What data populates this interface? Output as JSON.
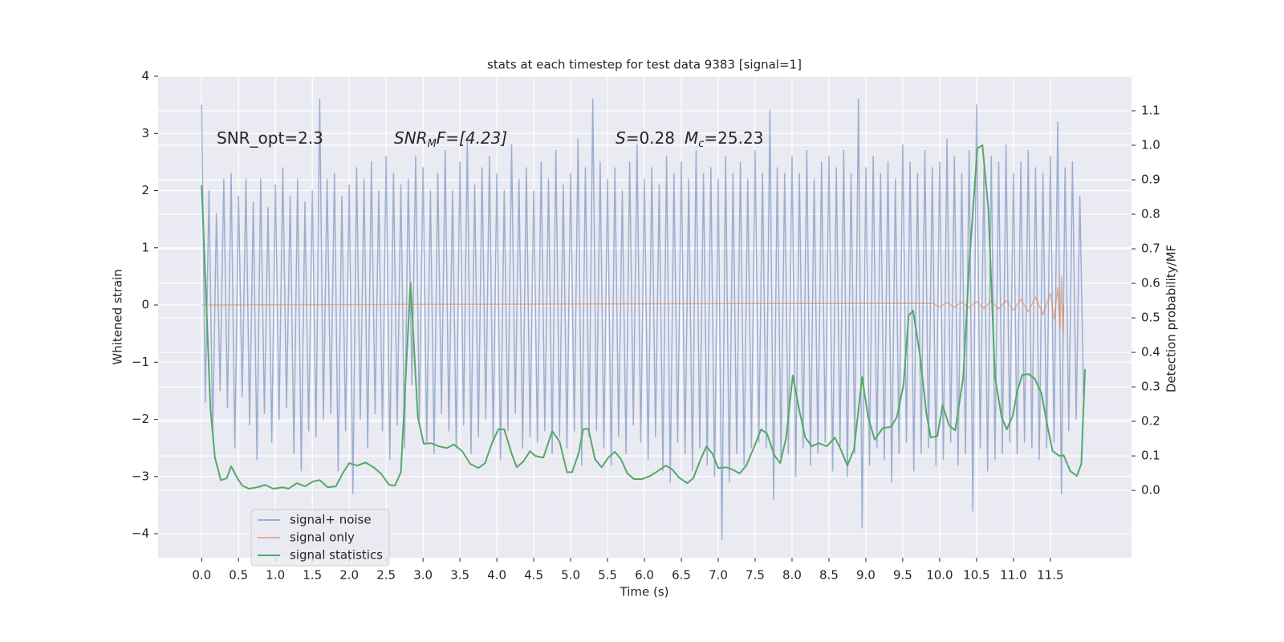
{
  "chart_data": {
    "type": "line",
    "title": "stats at each timestep for test data 9383 [signal=1]",
    "x_label": "Time (s)",
    "y_label": "Whitened strain",
    "y2_label": "Detection probability/MF",
    "annotations": [
      [
        "SNR_opt=2.3"
      ],
      [
        "SNR",
        "M",
        "F=[4.23]"
      ],
      [
        "S",
        "=0.28",
        "M",
        "c",
        "=25.23"
      ]
    ],
    "xlim": [
      -0.59,
      12.6
    ],
    "ylim": [
      -4.42,
      4
    ],
    "y2lim": [
      -0.195,
      1.2
    ],
    "xticks": [
      {
        "value": 0,
        "label": "0.0"
      },
      0.5,
      {
        "value": 1,
        "label": "1.0"
      },
      1.5,
      {
        "value": 2,
        "label": "2.0"
      },
      2.5,
      {
        "value": 3,
        "label": "3.0"
      },
      3.5,
      {
        "value": 4,
        "label": "4.0"
      },
      4.5,
      {
        "value": 5,
        "label": "5.0"
      },
      5.5,
      {
        "value": 6,
        "label": "6.0"
      },
      6.5,
      {
        "value": 7,
        "label": "7.0"
      },
      7.5,
      {
        "value": 8,
        "label": "8.0"
      },
      8.5,
      {
        "value": 9,
        "label": "9.0"
      },
      9.5,
      {
        "value": 10,
        "label": "10.0"
      },
      10.5,
      {
        "value": 11,
        "label": "11.0"
      },
      11.5
    ],
    "yticks": [
      {
        "value": -4,
        "label": "−4"
      },
      {
        "value": -3,
        "label": "−3"
      },
      {
        "value": -2,
        "label": "−2"
      },
      {
        "value": -1,
        "label": "−1"
      },
      0,
      1,
      2,
      3,
      4
    ],
    "y2ticks": [
      {
        "value": 0,
        "label": "0.0"
      },
      0.1,
      0.2,
      0.3,
      0.4,
      0.5,
      0.6,
      0.7,
      0.8,
      0.9,
      {
        "value": 1,
        "label": "1.0"
      },
      1.1
    ],
    "grid": true,
    "legend": "lower left",
    "series": [
      {
        "name": "signal+ noise",
        "color": "#4c72b0",
        "opacity": 0.5,
        "x": [
          0,
          0.05,
          0.1,
          0.15,
          0.2,
          0.25,
          0.3,
          0.35,
          0.4,
          0.45,
          0.5,
          0.55,
          0.6,
          0.65,
          0.7,
          0.75,
          0.8,
          0.85,
          0.9,
          0.95,
          1,
          1.05,
          1.1,
          1.15,
          1.2,
          1.25,
          1.3,
          1.35,
          1.4,
          1.45,
          1.5,
          1.55,
          1.6,
          1.65,
          1.7,
          1.75,
          1.8,
          1.85,
          1.9,
          1.95,
          2,
          2.05,
          2.1,
          2.15,
          2.2,
          2.25,
          2.3,
          2.35,
          2.4,
          2.45,
          2.5,
          2.55,
          2.6,
          2.65,
          2.7,
          2.75,
          2.8,
          2.85,
          2.9,
          2.95,
          3,
          3.05,
          3.1,
          3.15,
          3.2,
          3.25,
          3.3,
          3.35,
          3.4,
          3.45,
          3.5,
          3.55,
          3.6,
          3.65,
          3.7,
          3.75,
          3.8,
          3.85,
          3.9,
          3.95,
          4,
          4.05,
          4.1,
          4.15,
          4.2,
          4.25,
          4.3,
          4.35,
          4.4,
          4.45,
          4.5,
          4.55,
          4.6,
          4.65,
          4.7,
          4.75,
          4.8,
          4.85,
          4.9,
          4.95,
          5,
          5.05,
          5.1,
          5.15,
          5.2,
          5.25,
          5.3,
          5.35,
          5.4,
          5.45,
          5.5,
          5.55,
          5.6,
          5.65,
          5.7,
          5.75,
          5.8,
          5.85,
          5.9,
          5.95,
          6,
          6.05,
          6.1,
          6.15,
          6.2,
          6.25,
          6.3,
          6.35,
          6.4,
          6.45,
          6.5,
          6.55,
          6.6,
          6.65,
          6.7,
          6.75,
          6.8,
          6.85,
          6.9,
          6.95,
          7,
          7.05,
          7.1,
          7.15,
          7.2,
          7.25,
          7.3,
          7.35,
          7.4,
          7.45,
          7.5,
          7.55,
          7.6,
          7.65,
          7.7,
          7.75,
          7.8,
          7.85,
          7.9,
          7.95,
          8,
          8.05,
          8.1,
          8.15,
          8.2,
          8.25,
          8.3,
          8.35,
          8.4,
          8.45,
          8.5,
          8.55,
          8.6,
          8.65,
          8.7,
          8.75,
          8.8,
          8.85,
          8.9,
          8.95,
          9,
          9.05,
          9.1,
          9.15,
          9.2,
          9.25,
          9.3,
          9.35,
          9.4,
          9.45,
          9.5,
          9.55,
          9.6,
          9.65,
          9.7,
          9.75,
          9.8,
          9.85,
          9.9,
          9.95,
          10,
          10.05,
          10.1,
          10.15,
          10.2,
          10.25,
          10.3,
          10.35,
          10.4,
          10.45,
          10.5,
          10.55,
          10.6,
          10.65,
          10.7,
          10.75,
          10.8,
          10.85,
          10.9,
          10.95,
          11,
          11.05,
          11.1,
          11.15,
          11.2,
          11.25,
          11.3,
          11.35,
          11.4,
          11.45,
          11.5,
          11.55,
          11.6,
          11.65,
          11.7,
          11.75,
          11.8,
          11.85,
          11.9,
          11.95
        ],
        "values": [
          3.5,
          -1.7,
          2.0,
          -2.3,
          1.6,
          -1.5,
          2.2,
          -1.8,
          2.3,
          -2.5,
          1.9,
          -1.6,
          2.2,
          -2.1,
          1.8,
          -2.7,
          2.2,
          -1.9,
          1.7,
          -2.4,
          2.1,
          -2.0,
          2.4,
          -1.8,
          1.9,
          -2.6,
          2.2,
          -2.9,
          1.8,
          -2.2,
          2.0,
          -2.3,
          3.6,
          -2.0,
          2.2,
          -1.9,
          2.3,
          -2.9,
          1.9,
          -2.2,
          2.1,
          -3.3,
          2.4,
          -2.0,
          2.2,
          -2.5,
          2.5,
          -1.9,
          2.0,
          -2.2,
          2.6,
          -2.7,
          2.3,
          -2.1,
          2.1,
          -2.5,
          2.2,
          -1.4,
          2.6,
          -2.0,
          2.4,
          -2.4,
          2.0,
          -2.6,
          2.3,
          -1.9,
          2.7,
          -2.2,
          2.0,
          -2.5,
          2.5,
          -2.1,
          2.9,
          -2.6,
          2.1,
          -2.3,
          2.4,
          -2.0,
          2.6,
          -2.4,
          2.3,
          -2.7,
          2.0,
          -2.2,
          2.8,
          -1.9,
          2.2,
          -2.5,
          2.4,
          -2.3,
          2.0,
          -2.4,
          2.5,
          -2.2,
          2.2,
          -2.6,
          2.7,
          -2.3,
          2.1,
          -2.5,
          2.3,
          -2.2,
          2.9,
          -2.8,
          2.4,
          -2.3,
          3.6,
          -2.2,
          2.5,
          -2.5,
          2.2,
          -2.8,
          2.4,
          -2.3,
          2.0,
          -2.6,
          2.5,
          -2.1,
          2.8,
          -2.4,
          2.2,
          -2.7,
          2.4,
          -2.3,
          2.1,
          -2.9,
          2.6,
          -3.1,
          2.3,
          -2.4,
          2.5,
          -2.6,
          2.2,
          -2.9,
          2.7,
          -2.5,
          2.3,
          -2.8,
          2.4,
          -3.0,
          2.2,
          -4.1,
          2.6,
          -3.1,
          2.3,
          -2.6,
          2.5,
          -2.8,
          2.2,
          -2.5,
          2.7,
          -2.4,
          2.3,
          -2.5,
          3.4,
          -3.4,
          2.4,
          -2.7,
          2.3,
          -2.6,
          2.6,
          -3.0,
          2.3,
          -2.5,
          2.7,
          -2.8,
          2.2,
          -2.6,
          2.5,
          -2.4,
          2.6,
          -2.9,
          2.4,
          -2.5,
          2.7,
          -3.0,
          2.3,
          -2.6,
          3.6,
          -3.9,
          2.4,
          -2.8,
          2.6,
          -2.5,
          2.3,
          -2.7,
          2.5,
          -3.1,
          2.2,
          -2.6,
          2.8,
          -2.4,
          2.5,
          -2.9,
          2.3,
          -2.6,
          2.7,
          -2.5,
          2.4,
          -2.8,
          2.5,
          -2.7,
          2.9,
          -2.4,
          2.6,
          -2.8,
          2.3,
          -2.6,
          2.7,
          -3.6,
          3.5,
          -2.5,
          2.4,
          -2.9,
          2.6,
          -2.7,
          2.5,
          -2.6,
          2.8,
          -2.4,
          2.3,
          -2.6,
          2.5,
          -2.4,
          2.7,
          -2.5,
          2.4,
          -2.7,
          2.3,
          -2.5,
          2.6,
          -2.4,
          3.2,
          -3.3,
          2.4,
          -2.2,
          2.5,
          -2.0,
          1.9,
          -1.6
        ]
      },
      {
        "name": "signal only",
        "color": "#dd8452",
        "opacity": 0.6,
        "x": [
          0,
          9.9,
          10.0,
          10.1,
          10.2,
          10.3,
          10.4,
          10.5,
          10.6,
          10.7,
          10.8,
          10.9,
          11.0,
          11.1,
          11.2,
          11.3,
          11.4,
          11.5,
          11.55,
          11.6,
          11.63,
          11.65,
          11.67,
          11.68
        ],
        "values": [
          0,
          0.03,
          -0.03,
          0.04,
          -0.04,
          0.05,
          -0.05,
          0.06,
          -0.06,
          0.07,
          -0.07,
          0.08,
          -0.09,
          0.1,
          -0.12,
          0.14,
          -0.17,
          0.2,
          -0.25,
          0.3,
          -0.4,
          0.5,
          -0.5,
          0
        ]
      },
      {
        "name": "signal statistics",
        "color": "#55a868",
        "opacity": 1,
        "axis": "y2",
        "x": [
          0,
          0.12,
          0.18,
          0.26,
          0.34,
          0.4,
          0.48,
          0.55,
          0.64,
          0.75,
          0.86,
          0.97,
          1.1,
          1.18,
          1.29,
          1.4,
          1.51,
          1.6,
          1.71,
          1.82,
          1.92,
          2.0,
          2.11,
          2.22,
          2.33,
          2.43,
          2.54,
          2.62,
          2.7,
          2.83,
          2.93,
          3.01,
          3.11,
          3.21,
          3.32,
          3.42,
          3.53,
          3.64,
          3.75,
          3.84,
          3.93,
          4.02,
          4.1,
          4.2,
          4.27,
          4.36,
          4.45,
          4.52,
          4.63,
          4.75,
          4.85,
          4.95,
          5.02,
          5.11,
          5.17,
          5.24,
          5.33,
          5.42,
          5.51,
          5.6,
          5.68,
          5.77,
          5.86,
          5.97,
          6.08,
          6.18,
          6.29,
          6.38,
          6.47,
          6.58,
          6.66,
          6.75,
          6.84,
          6.92,
          7.0,
          7.11,
          7.2,
          7.29,
          7.38,
          7.49,
          7.58,
          7.66,
          7.76,
          7.84,
          7.92,
          8.01,
          8.1,
          8.18,
          8.27,
          8.36,
          8.47,
          8.58,
          8.66,
          8.75,
          8.84,
          8.95,
          9.03,
          9.12,
          9.23,
          9.34,
          9.42,
          9.51,
          9.58,
          9.64,
          9.73,
          9.82,
          9.88,
          9.97,
          10.04,
          10.13,
          10.21,
          10.32,
          10.4,
          10.51,
          10.58,
          10.66,
          10.75,
          10.84,
          10.91,
          10.99,
          11.05,
          11.12,
          11.21,
          11.29,
          11.38,
          11.46,
          11.53,
          11.62,
          11.68,
          11.77,
          11.86,
          11.92,
          11.97
        ],
        "values": [
          0.884,
          0.235,
          0.095,
          0.03,
          0.035,
          0.07,
          0.037,
          0.014,
          0.005,
          0.009,
          0.016,
          0.005,
          0.009,
          0.005,
          0.021,
          0.012,
          0.026,
          0.03,
          0.009,
          0.012,
          0.053,
          0.079,
          0.072,
          0.081,
          0.067,
          0.049,
          0.016,
          0.014,
          0.053,
          0.602,
          0.212,
          0.135,
          0.137,
          0.128,
          0.123,
          0.133,
          0.114,
          0.077,
          0.065,
          0.079,
          0.135,
          0.177,
          0.177,
          0.107,
          0.067,
          0.084,
          0.114,
          0.1,
          0.095,
          0.172,
          0.142,
          0.053,
          0.053,
          0.109,
          0.177,
          0.179,
          0.091,
          0.067,
          0.095,
          0.112,
          0.091,
          0.049,
          0.033,
          0.033,
          0.042,
          0.056,
          0.072,
          0.06,
          0.037,
          0.021,
          0.035,
          0.084,
          0.128,
          0.107,
          0.065,
          0.067,
          0.06,
          0.049,
          0.072,
          0.128,
          0.177,
          0.165,
          0.102,
          0.079,
          0.153,
          0.333,
          0.23,
          0.153,
          0.128,
          0.137,
          0.128,
          0.153,
          0.119,
          0.072,
          0.119,
          0.328,
          0.212,
          0.147,
          0.181,
          0.184,
          0.212,
          0.305,
          0.507,
          0.521,
          0.398,
          0.223,
          0.153,
          0.158,
          0.247,
          0.188,
          0.174,
          0.328,
          0.653,
          0.991,
          1.0,
          0.816,
          0.328,
          0.212,
          0.177,
          0.216,
          0.286,
          0.335,
          0.337,
          0.323,
          0.281,
          0.188,
          0.114,
          0.1,
          0.102,
          0.056,
          0.042,
          0.077,
          0.351
        ]
      }
    ]
  }
}
